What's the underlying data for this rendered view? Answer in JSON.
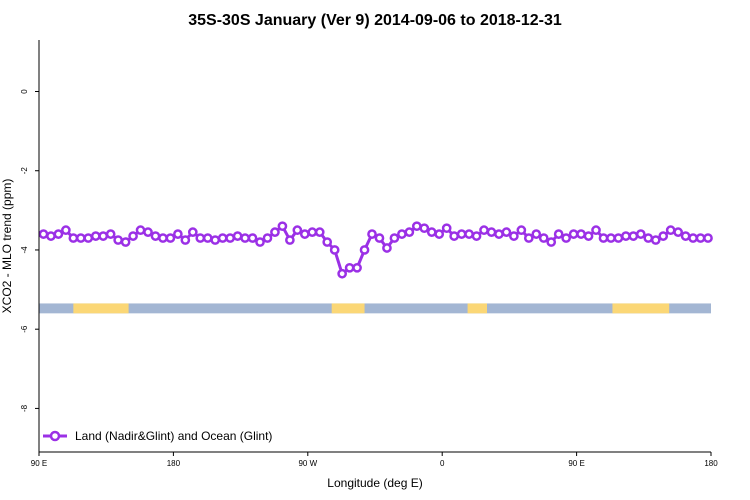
{
  "chart_data": {
    "type": "line",
    "title": "35S-30S January (Ver 9)   2014-09-06 to 2018-12-31",
    "xlabel": "Longitude (deg E)",
    "ylabel": "XCO2 - MLO trend (ppm)",
    "xlim": [
      90,
      540
    ],
    "ylim": [
      -9.1,
      1.3
    ],
    "x_ticks": [
      {
        "value": 90,
        "label": "90 E"
      },
      {
        "value": 180,
        "label": "180"
      },
      {
        "value": 270,
        "label": "90 W"
      },
      {
        "value": 360,
        "label": "0"
      },
      {
        "value": 450,
        "label": "90 E"
      },
      {
        "value": 540,
        "label": "180"
      }
    ],
    "y_ticks": [
      {
        "value": 0,
        "label": "0"
      },
      {
        "value": -2,
        "label": "-2"
      },
      {
        "value": -4,
        "label": "-4"
      },
      {
        "value": -6,
        "label": "-6"
      },
      {
        "value": -8,
        "label": "-8"
      }
    ],
    "grid": false,
    "legend_position": "bottom-left",
    "series": [
      {
        "name": "Land (Nadir&Glint) and Ocean (Glint)",
        "color": "#9b30e6",
        "marker": "open-circle",
        "x": [
          93,
          98,
          103,
          108,
          113,
          118,
          123,
          128,
          133,
          138,
          143,
          148,
          153,
          158,
          163,
          168,
          173,
          178,
          183,
          188,
          193,
          198,
          203,
          208,
          213,
          218,
          223,
          228,
          233,
          238,
          243,
          248,
          253,
          258,
          263,
          268,
          273,
          278,
          283,
          288,
          293,
          298,
          303,
          308,
          313,
          318,
          323,
          328,
          333,
          338,
          343,
          348,
          353,
          358,
          363,
          368,
          373,
          378,
          383,
          388,
          393,
          398,
          403,
          408,
          413,
          418,
          423,
          428,
          433,
          438,
          443,
          448,
          453,
          458,
          463,
          468,
          473,
          478,
          483,
          488,
          493,
          498,
          503,
          508,
          513,
          518,
          523,
          528,
          533,
          538
        ],
        "y": [
          -3.6,
          -3.65,
          -3.6,
          -3.5,
          -3.7,
          -3.7,
          -3.7,
          -3.65,
          -3.65,
          -3.6,
          -3.75,
          -3.8,
          -3.65,
          -3.5,
          -3.55,
          -3.65,
          -3.7,
          -3.7,
          -3.6,
          -3.75,
          -3.55,
          -3.7,
          -3.7,
          -3.75,
          -3.7,
          -3.7,
          -3.65,
          -3.7,
          -3.7,
          -3.8,
          -3.7,
          -3.55,
          -3.4,
          -3.75,
          -3.5,
          -3.6,
          -3.55,
          -3.55,
          -3.8,
          -4.0,
          -4.6,
          -4.45,
          -4.45,
          -4.0,
          -3.6,
          -3.7,
          -3.95,
          -3.7,
          -3.6,
          -3.55,
          -3.4,
          -3.45,
          -3.55,
          -3.6,
          -3.45,
          -3.65,
          -3.6,
          -3.6,
          -3.65,
          -3.5,
          -3.55,
          -3.6,
          -3.55,
          -3.65,
          -3.5,
          -3.7,
          -3.6,
          -3.7,
          -3.8,
          -3.6,
          -3.7,
          -3.6,
          -3.6,
          -3.65,
          -3.5,
          -3.7,
          -3.7,
          -3.7,
          -3.65,
          -3.65,
          -3.6,
          -3.7,
          -3.75,
          -3.65,
          -3.5,
          -3.55,
          -3.65,
          -3.7,
          -3.7,
          -3.7
        ]
      }
    ],
    "surface_strip": {
      "y_range": [
        -5.6,
        -5.35
      ],
      "ocean_color": "#a3b6d3",
      "land_color": "#fbd776",
      "land_lon_ranges": [
        [
          113,
          150
        ],
        [
          286,
          308
        ],
        [
          377,
          390
        ],
        [
          474,
          512
        ]
      ]
    }
  }
}
